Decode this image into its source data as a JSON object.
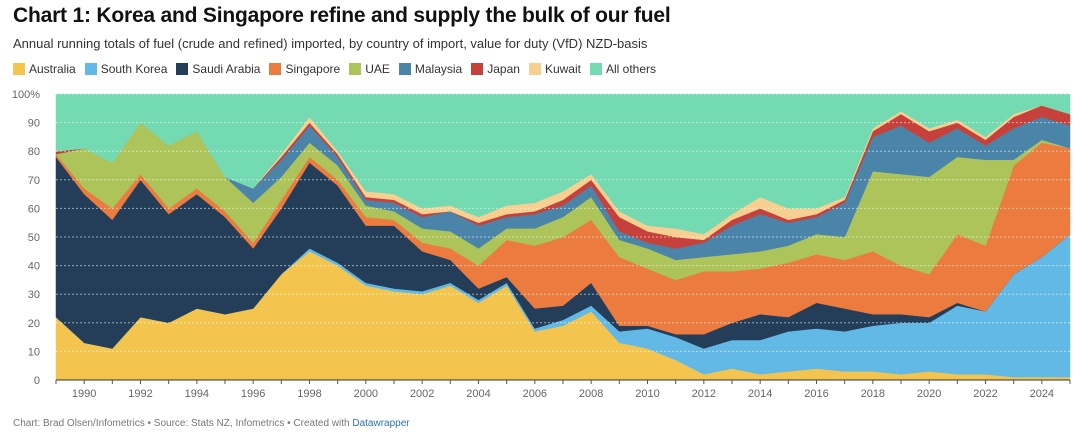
{
  "title": "Chart 1: Korea and Singapore refine and supply the bulk of our fuel",
  "subtitle": "Annual running totals of fuel (crude and refined) imported, by country of import, value for duty (VfD) NZD-basis",
  "footer": {
    "text": "Chart: Brad Olsen/Infometrics • Source: Stats NZ, Infometrics • Created with ",
    "link": "Datawrapper"
  },
  "chart_data": {
    "type": "area",
    "stacked": true,
    "ylim": [
      0,
      100
    ],
    "yticks": [
      0,
      10,
      20,
      30,
      40,
      50,
      60,
      70,
      80,
      90,
      100
    ],
    "ytick_labels": [
      "0",
      "10",
      "20",
      "30",
      "40",
      "50",
      "60",
      "70",
      "80",
      "90",
      "100%"
    ],
    "xlim": [
      1989,
      2025
    ],
    "xticks": [
      1990,
      1992,
      1994,
      1996,
      1998,
      2000,
      2002,
      2004,
      2006,
      2008,
      2010,
      2012,
      2014,
      2016,
      2018,
      2020,
      2022,
      2024
    ],
    "grid": true,
    "legend_position": "top-left",
    "x": [
      1989,
      1990,
      1991,
      1992,
      1993,
      1994,
      1995,
      1996,
      1997,
      1998,
      1999,
      2000,
      2001,
      2002,
      2003,
      2004,
      2005,
      2006,
      2007,
      2008,
      2009,
      2010,
      2011,
      2012,
      2013,
      2014,
      2015,
      2016,
      2017,
      2018,
      2019,
      2020,
      2021,
      2022,
      2023,
      2024,
      2025
    ],
    "series": [
      {
        "name": "Australia",
        "color": "#f4c54e",
        "values": [
          22,
          13,
          11,
          22,
          20,
          25,
          23,
          25,
          37,
          45,
          40,
          33,
          31,
          30,
          33,
          27,
          33,
          17,
          19,
          24,
          13,
          11,
          7,
          2,
          4,
          2,
          3,
          4,
          3,
          3,
          2,
          3,
          2,
          2,
          1,
          1,
          1
        ]
      },
      {
        "name": "South Korea",
        "color": "#62b9e6",
        "values": [
          0,
          0,
          0,
          0,
          0,
          0,
          0,
          0,
          0,
          1,
          1,
          1,
          1,
          1,
          1,
          1,
          1,
          1,
          2,
          2,
          4,
          7,
          8,
          9,
          10,
          12,
          14,
          14,
          14,
          16,
          18,
          17,
          24,
          22,
          36,
          42,
          50
        ]
      },
      {
        "name": "Saudi Arabia",
        "color": "#243e5a",
        "values": [
          56,
          52,
          45,
          48,
          38,
          40,
          34,
          21,
          23,
          30,
          27,
          20,
          22,
          14,
          8,
          4,
          2,
          7,
          5,
          8,
          2,
          1,
          1,
          5,
          6,
          9,
          5,
          9,
          8,
          4,
          3,
          2,
          1,
          0,
          0,
          0,
          0
        ]
      },
      {
        "name": "Singapore",
        "color": "#ec7b40",
        "values": [
          1,
          2,
          4,
          2,
          2,
          2,
          2,
          2,
          3,
          2,
          2,
          3,
          2,
          3,
          4,
          8,
          13,
          22,
          24,
          22,
          24,
          20,
          19,
          22,
          18,
          16,
          19,
          17,
          17,
          22,
          17,
          15,
          24,
          23,
          38,
          40,
          30
        ]
      },
      {
        "name": "UAE",
        "color": "#adc45a",
        "values": [
          0,
          14,
          16,
          18,
          22,
          20,
          12,
          14,
          8,
          5,
          5,
          4,
          3,
          5,
          6,
          6,
          4,
          6,
          7,
          8,
          6,
          7,
          7,
          5,
          6,
          6,
          6,
          7,
          8,
          28,
          32,
          34,
          27,
          30,
          2,
          1,
          0
        ]
      },
      {
        "name": "Malaysia",
        "color": "#4a84a8",
        "values": [
          0,
          0,
          0,
          0,
          0,
          0,
          0,
          5,
          6,
          6,
          3,
          2,
          3,
          4,
          7,
          8,
          4,
          5,
          4,
          4,
          3,
          2,
          4,
          5,
          10,
          13,
          8,
          6,
          12,
          12,
          17,
          12,
          10,
          5,
          11,
          8,
          8
        ]
      },
      {
        "name": "Japan",
        "color": "#c6413b",
        "values": [
          1,
          0,
          0,
          0,
          0,
          0,
          0,
          0,
          1,
          1,
          1,
          1,
          1,
          1,
          0,
          1,
          1,
          1,
          2,
          2,
          5,
          4,
          4,
          1,
          2,
          2,
          1,
          1,
          1,
          2,
          4,
          4,
          2,
          2,
          4,
          4,
          4
        ]
      },
      {
        "name": "Kuwait",
        "color": "#f6cf91",
        "values": [
          0,
          0,
          0,
          0,
          0,
          0,
          0,
          0,
          1,
          2,
          1,
          2,
          2,
          2,
          2,
          2,
          3,
          3,
          3,
          2,
          2,
          2,
          3,
          2,
          2,
          4,
          4,
          2,
          1,
          1,
          1,
          1,
          1,
          1,
          1,
          0,
          0
        ]
      },
      {
        "name": "All others",
        "color": "#73dab2",
        "values": [
          20,
          19,
          24,
          10,
          18,
          13,
          29,
          33,
          21,
          8,
          20,
          34,
          35,
          40,
          39,
          43,
          39,
          38,
          34,
          28,
          41,
          46,
          47,
          49,
          42,
          36,
          40,
          40,
          36,
          12,
          6,
          12,
          9,
          15,
          7,
          4,
          7
        ]
      }
    ]
  }
}
